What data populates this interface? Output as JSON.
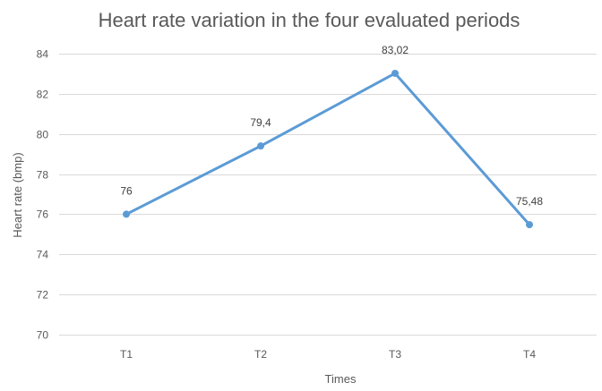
{
  "chart_data": {
    "type": "line",
    "title": "Heart rate variation in the four evaluated periods",
    "xlabel": "Times",
    "ylabel": "Heart rate (bmp)",
    "categories": [
      "T1",
      "T2",
      "T3",
      "T4"
    ],
    "series": [
      {
        "values": [
          76,
          79.4,
          83.02,
          75.48
        ],
        "data_labels": [
          "76",
          "79,4",
          "83,02",
          "75,48"
        ],
        "color": "#5b9bd5"
      }
    ],
    "ylim": [
      70,
      84
    ],
    "yticks": [
      70,
      72,
      74,
      76,
      78,
      80,
      82,
      84
    ],
    "ytick_labels": [
      "70",
      "72",
      "74",
      "76",
      "78",
      "80",
      "82",
      "84"
    ],
    "grid": true,
    "legend": "none"
  }
}
